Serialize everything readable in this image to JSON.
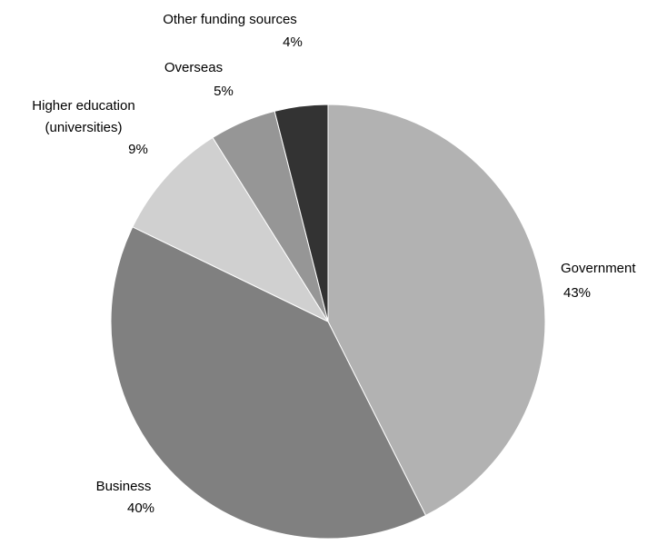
{
  "chart_data": {
    "type": "pie",
    "title": "",
    "start_angle_deg": 0,
    "direction": "clockwise",
    "slices": [
      {
        "label": "Government",
        "value": 43,
        "value_label": "43%",
        "color": "#b2b2b2"
      },
      {
        "label": "Business",
        "value": 40,
        "value_label": "40%",
        "color": "#808080"
      },
      {
        "label": "Higher education (universities)",
        "label_lines": [
          "Higher education",
          "(universities)"
        ],
        "value": 9,
        "value_label": "9%",
        "color": "#d0d0d0"
      },
      {
        "label": "Overseas",
        "value": 5,
        "value_label": "5%",
        "color": "#969696"
      },
      {
        "label": "Other funding sources",
        "value": 4,
        "value_label": "4%",
        "color": "#333333"
      }
    ]
  }
}
